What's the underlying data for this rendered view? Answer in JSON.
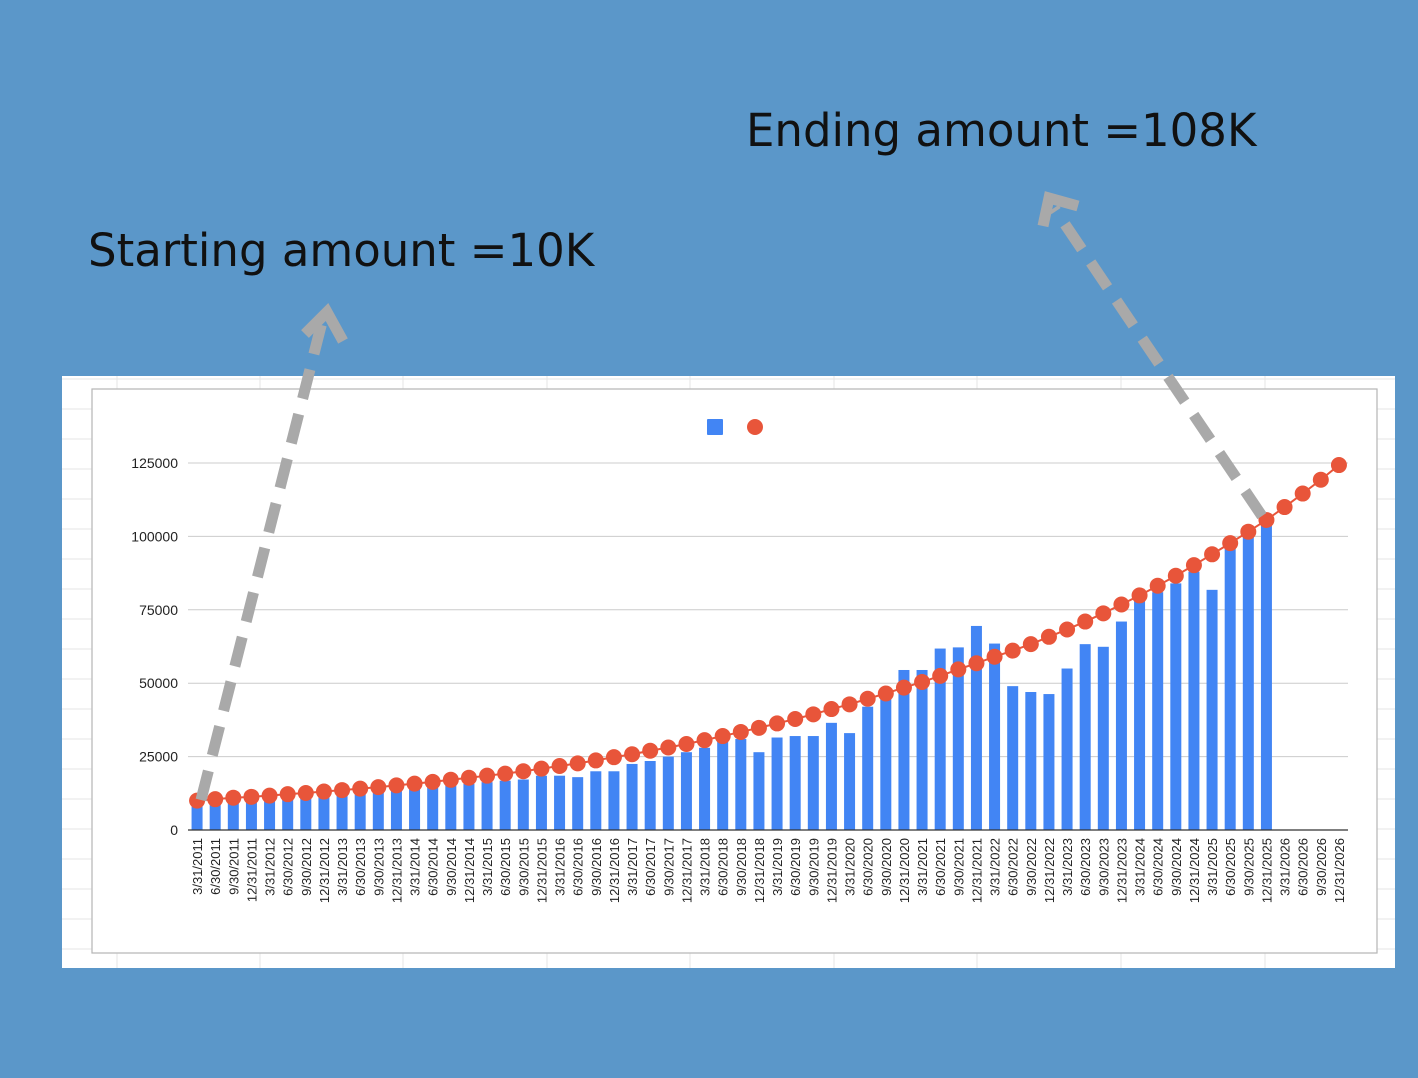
{
  "annotations": {
    "start": "Starting amount =10K",
    "end": "Ending amount =108K"
  },
  "colors": {
    "background": "#5b97c9",
    "bars": "#4285f4",
    "line": "#e8553a",
    "arrow": "#a9a9a9"
  },
  "chart_data": {
    "type": "bar",
    "title": "",
    "xlabel": "",
    "ylabel": "",
    "ylim": [
      0,
      137500
    ],
    "yticks": [
      0,
      25000,
      50000,
      75000,
      100000,
      125000
    ],
    "grid": true,
    "legend_position": "top",
    "categories": [
      "3/31/2011",
      "6/30/2011",
      "9/30/2011",
      "12/31/2011",
      "3/31/2012",
      "6/30/2012",
      "9/30/2012",
      "12/31/2012",
      "3/31/2013",
      "6/30/2013",
      "9/30/2013",
      "12/31/2013",
      "3/31/2014",
      "6/30/2014",
      "9/30/2014",
      "12/31/2014",
      "3/31/2015",
      "6/30/2015",
      "9/30/2015",
      "12/31/2015",
      "3/31/2016",
      "6/30/2016",
      "9/30/2016",
      "12/31/2016",
      "3/31/2017",
      "6/30/2017",
      "9/30/2017",
      "12/31/2017",
      "3/31/2018",
      "6/30/2018",
      "9/30/2018",
      "12/31/2018",
      "3/31/2019",
      "6/30/2019",
      "9/30/2019",
      "12/31/2019",
      "3/31/2020",
      "6/30/2020",
      "9/30/2020",
      "12/31/2020",
      "3/31/2021",
      "6/30/2021",
      "9/30/2021",
      "12/31/2021",
      "3/31/2022",
      "6/30/2022",
      "9/30/2022",
      "12/31/2022",
      "3/31/2023",
      "6/30/2023",
      "9/30/2023",
      "12/31/2023",
      "3/31/2024",
      "6/30/2024",
      "9/30/2024",
      "12/31/2024",
      "3/31/2025",
      "6/30/2025",
      "9/30/2025",
      "12/31/2025",
      "3/31/2026",
      "6/30/2026",
      "9/30/2026",
      "12/31/2026"
    ],
    "series": [
      {
        "type": "bar",
        "values": [
          9000,
          9200,
          9400,
          10500,
          10800,
          11200,
          11500,
          11800,
          12000,
          12400,
          12800,
          13300,
          14000,
          14600,
          15100,
          15700,
          16300,
          16800,
          17200,
          18500,
          18500,
          18000,
          20000,
          20000,
          22500,
          23500,
          25000,
          26500,
          28000,
          30000,
          31000,
          26500,
          31500,
          32000,
          32000,
          36500,
          33000,
          42000,
          45000,
          54500,
          54500,
          61800,
          62200,
          69500,
          63500,
          49000,
          47000,
          46300,
          55000,
          63300,
          62400,
          71000,
          78000,
          81000,
          84000,
          88000,
          81800,
          96000,
          101000,
          105000,
          null,
          null,
          null,
          null
        ]
      },
      {
        "type": "line",
        "values": [
          10000,
          10500,
          11000,
          11300,
          11700,
          12200,
          12600,
          13100,
          13600,
          14100,
          14600,
          15200,
          15800,
          16400,
          17100,
          17800,
          18500,
          19200,
          20000,
          20900,
          21800,
          22700,
          23700,
          24800,
          25800,
          27000,
          28100,
          29300,
          30600,
          32000,
          33400,
          34800,
          36300,
          37800,
          39400,
          41200,
          42800,
          44700,
          46500,
          48500,
          50400,
          52500,
          54700,
          56800,
          59000,
          61100,
          63300,
          65800,
          68300,
          71000,
          73800,
          76800,
          79900,
          83200,
          86600,
          90200,
          93900,
          97700,
          101600,
          105600,
          110000,
          114600,
          119300,
          124300
        ]
      }
    ]
  }
}
